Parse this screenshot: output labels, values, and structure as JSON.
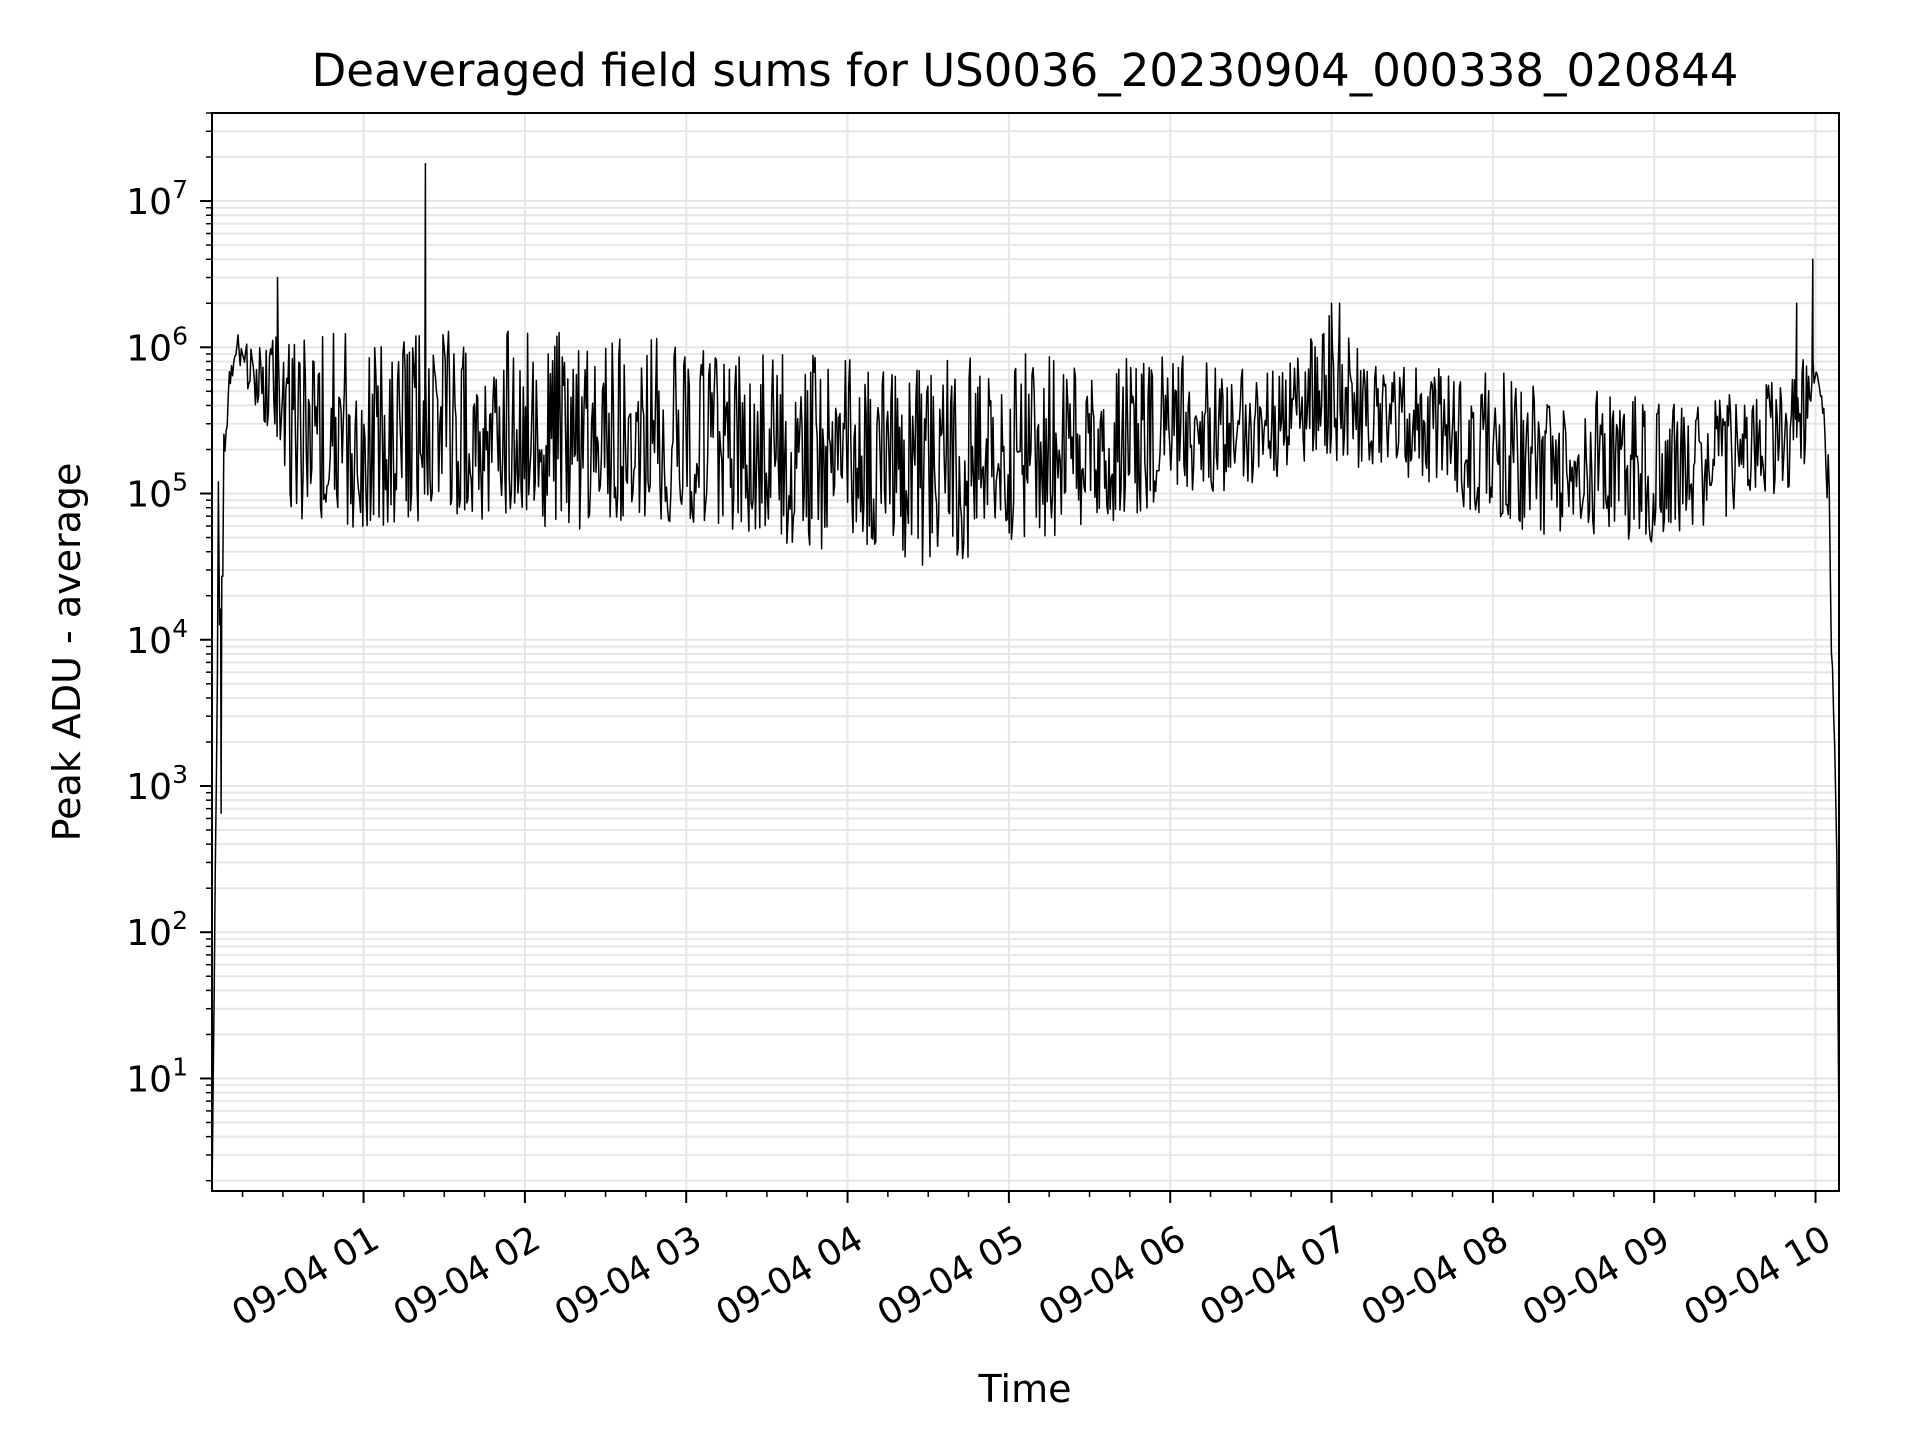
{
  "chart_data": {
    "type": "line",
    "title": "Deaveraged field sums for US0036_20230904_000338_020844",
    "xlabel": "Time",
    "ylabel": "Peak ADU - average",
    "yscale": "log",
    "ylim": [
      1.7,
      40000000
    ],
    "xlim": [
      "2023-09-04 00:03:38",
      "2023-09-04 10:08:44"
    ],
    "grid": true,
    "line_color": "#000000",
    "grid_color": "#e6e6e6",
    "x_ticks": [
      {
        "value": "2023-09-04 01:00:00",
        "label": "09-04 01"
      },
      {
        "value": "2023-09-04 02:00:00",
        "label": "09-04 02"
      },
      {
        "value": "2023-09-04 03:00:00",
        "label": "09-04 03"
      },
      {
        "value": "2023-09-04 04:00:00",
        "label": "09-04 04"
      },
      {
        "value": "2023-09-04 05:00:00",
        "label": "09-04 05"
      },
      {
        "value": "2023-09-04 06:00:00",
        "label": "09-04 06"
      },
      {
        "value": "2023-09-04 07:00:00",
        "label": "09-04 07"
      },
      {
        "value": "2023-09-04 08:00:00",
        "label": "09-04 08"
      },
      {
        "value": "2023-09-04 09:00:00",
        "label": "09-04 09"
      },
      {
        "value": "2023-09-04 10:00:00",
        "label": "09-04 10"
      }
    ],
    "y_ticks": [
      {
        "value": 10,
        "base": "10",
        "exp": "1"
      },
      {
        "value": 100,
        "base": "10",
        "exp": "2"
      },
      {
        "value": 1000,
        "base": "10",
        "exp": "3"
      },
      {
        "value": 10000,
        "base": "10",
        "exp": "4"
      },
      {
        "value": 100000,
        "base": "10",
        "exp": "5"
      },
      {
        "value": 1000000,
        "base": "10",
        "exp": "6"
      },
      {
        "value": 10000000,
        "base": "10",
        "exp": "7"
      }
    ],
    "series": [
      {
        "envelope": {
          "x": [
            "2023-09-04 00:03:38",
            "2023-09-04 00:06:00",
            "2023-09-04 00:07:00",
            "2023-09-04 00:08:00",
            "2023-09-04 00:10:00",
            "2023-09-04 00:12:00",
            "2023-09-04 00:15:00",
            "2023-09-04 00:20:00",
            "2023-09-04 00:25:00",
            "2023-09-04 00:30:00",
            "2023-09-04 00:35:00",
            "2023-09-04 00:40:00",
            "2023-09-04 00:50:00",
            "2023-09-04 01:00:00",
            "2023-09-04 01:15:00",
            "2023-09-04 01:30:00",
            "2023-09-04 01:45:00",
            "2023-09-04 02:00:00",
            "2023-09-04 02:15:00",
            "2023-09-04 02:30:00",
            "2023-09-04 02:45:00",
            "2023-09-04 03:00:00",
            "2023-09-04 03:15:00",
            "2023-09-04 03:30:00",
            "2023-09-04 03:45:00",
            "2023-09-04 04:00:00",
            "2023-09-04 04:15:00",
            "2023-09-04 04:30:00",
            "2023-09-04 04:45:00",
            "2023-09-04 05:00:00",
            "2023-09-04 05:15:00",
            "2023-09-04 05:30:00",
            "2023-09-04 05:45:00",
            "2023-09-04 06:00:00",
            "2023-09-04 06:15:00",
            "2023-09-04 06:30:00",
            "2023-09-04 06:45:00",
            "2023-09-04 07:00:00",
            "2023-09-04 07:15:00",
            "2023-09-04 07:30:00",
            "2023-09-04 07:45:00",
            "2023-09-04 08:00:00",
            "2023-09-04 08:15:00",
            "2023-09-04 08:30:00",
            "2023-09-04 08:45:00",
            "2023-09-04 09:00:00",
            "2023-09-04 09:15:00",
            "2023-09-04 09:30:00",
            "2023-09-04 09:45:00",
            "2023-09-04 09:56:00",
            "2023-09-04 10:00:00",
            "2023-09-04 10:03:00",
            "2023-09-04 10:05:00",
            "2023-09-04 10:06:00",
            "2023-09-04 10:07:00",
            "2023-09-04 10:08:00",
            "2023-09-04 10:08:44"
          ],
          "upper": [
            1.5,
            120000,
            25000,
            300000,
            700000,
            1300000,
            1200000,
            900000,
            1300000,
            1200000,
            1300000,
            1300000,
            1250000,
            1250000,
            1300000,
            1300000,
            1300000,
            1300000,
            1300000,
            1300000,
            1300000,
            1000000,
            950000,
            900000,
            900000,
            850000,
            800000,
            800000,
            900000,
            950000,
            900000,
            850000,
            900000,
            900000,
            850000,
            750000,
            800000,
            1800000,
            750000,
            750000,
            700000,
            700000,
            600000,
            500000,
            500000,
            450000,
            400000,
            500000,
            600000,
            1000000,
            800000,
            400000,
            200000,
            10000,
            3000,
            500,
            4
          ],
          "lower": [
            1.5,
            15000,
            700,
            150000,
            400000,
            800000,
            600000,
            350000,
            250000,
            100000,
            70000,
            60000,
            55000,
            55000,
            60000,
            55000,
            60000,
            60000,
            55000,
            60000,
            60000,
            60000,
            50000,
            45000,
            40000,
            40000,
            35000,
            32000,
            35000,
            45000,
            50000,
            55000,
            70000,
            90000,
            100000,
            110000,
            140000,
            150000,
            130000,
            90000,
            80000,
            60000,
            55000,
            45000,
            45000,
            45000,
            55000,
            65000,
            80000,
            150000,
            600000,
            250000,
            50000,
            6000,
            1500,
            200,
            4
          ]
        },
        "peaks": [
          {
            "x": "2023-09-04 00:06:00",
            "y": 120000
          },
          {
            "x": "2023-09-04 00:07:00",
            "y": 650
          },
          {
            "x": "2023-09-04 00:28:00",
            "y": 3000000
          },
          {
            "x": "2023-09-04 01:23:00",
            "y": 18000000
          },
          {
            "x": "2023-09-04 07:00:00",
            "y": 2000000
          },
          {
            "x": "2023-09-04 07:03:00",
            "y": 2000000
          },
          {
            "x": "2023-09-04 09:53:00",
            "y": 2000000
          },
          {
            "x": "2023-09-04 09:59:00",
            "y": 4000000
          }
        ]
      }
    ]
  }
}
